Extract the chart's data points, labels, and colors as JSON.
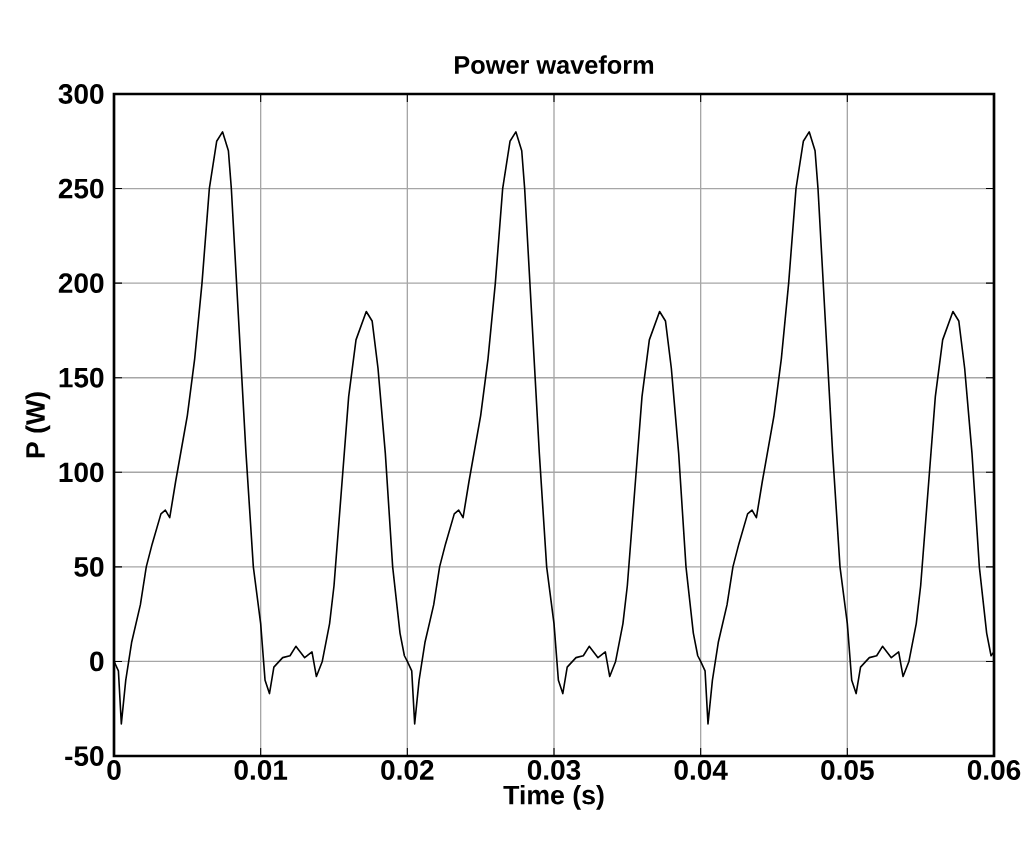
{
  "chart_data": {
    "type": "line",
    "title": "Power waveform",
    "xlabel": "Time (s)",
    "ylabel": "P (W)",
    "x": [
      0,
      0.0003,
      0.0005,
      0.0008,
      0.0012,
      0.0015,
      0.0018,
      0.0022,
      0.0026,
      0.0032,
      0.0035,
      0.0038,
      0.0042,
      0.005,
      0.0055,
      0.006,
      0.0065,
      0.007,
      0.0074,
      0.0078,
      0.008,
      0.0085,
      0.009,
      0.0095,
      0.01,
      0.0103,
      0.0106,
      0.0109,
      0.0115,
      0.012,
      0.0124,
      0.0127,
      0.013,
      0.0135,
      0.0138,
      0.0142,
      0.0147,
      0.015,
      0.0155,
      0.016,
      0.0165,
      0.0172,
      0.0176,
      0.018,
      0.0185,
      0.019,
      0.0195,
      0.0198,
      0.02,
      0.0203,
      0.0205,
      0.0208,
      0.0212,
      0.0215,
      0.0218,
      0.0222,
      0.0226,
      0.0232,
      0.0235,
      0.0238,
      0.0242,
      0.025,
      0.0255,
      0.026,
      0.0265,
      0.027,
      0.0274,
      0.0278,
      0.028,
      0.0285,
      0.029,
      0.0295,
      0.03,
      0.0303,
      0.0306,
      0.0309,
      0.0315,
      0.032,
      0.0324,
      0.0327,
      0.033,
      0.0335,
      0.0338,
      0.0342,
      0.0347,
      0.035,
      0.0355,
      0.036,
      0.0365,
      0.0372,
      0.0376,
      0.038,
      0.0385,
      0.039,
      0.0395,
      0.0398,
      0.04,
      0.0403,
      0.0405,
      0.0408,
      0.0412,
      0.0415,
      0.0418,
      0.0422,
      0.0426,
      0.0432,
      0.0435,
      0.0438,
      0.0442,
      0.045,
      0.0455,
      0.046,
      0.0465,
      0.047,
      0.0474,
      0.0478,
      0.048,
      0.0485,
      0.049,
      0.0495,
      0.05,
      0.0503,
      0.0506,
      0.0509,
      0.0515,
      0.052,
      0.0524,
      0.0527,
      0.053,
      0.0535,
      0.0538,
      0.0542,
      0.0547,
      0.055,
      0.0555,
      0.056,
      0.0565,
      0.0572,
      0.0576,
      0.058,
      0.0585,
      0.059,
      0.0595,
      0.0598,
      0.06
    ],
    "series": [
      {
        "color": "#000000",
        "values": [
          0,
          -5,
          -33,
          -10,
          10,
          20,
          30,
          50,
          62,
          78,
          80,
          76,
          95,
          130,
          160,
          200,
          250,
          275,
          280,
          270,
          250,
          180,
          110,
          50,
          20,
          -10,
          -17,
          -3,
          2,
          3,
          8,
          5,
          2,
          5,
          -8,
          0,
          20,
          40,
          90,
          140,
          170,
          185,
          180,
          155,
          110,
          50,
          15,
          3,
          0,
          -5,
          -33,
          -10,
          10,
          20,
          30,
          50,
          62,
          78,
          80,
          76,
          95,
          130,
          160,
          200,
          250,
          275,
          280,
          270,
          250,
          180,
          110,
          50,
          20,
          -10,
          -17,
          -3,
          2,
          3,
          8,
          5,
          2,
          5,
          -8,
          0,
          20,
          40,
          90,
          140,
          170,
          185,
          180,
          155,
          110,
          50,
          15,
          3,
          0,
          -5,
          -33,
          -10,
          10,
          20,
          30,
          50,
          62,
          78,
          80,
          76,
          95,
          130,
          160,
          200,
          250,
          275,
          280,
          270,
          250,
          180,
          110,
          50,
          20,
          -10,
          -17,
          -3,
          2,
          3,
          8,
          5,
          2,
          5,
          -8,
          0,
          20,
          40,
          90,
          140,
          170,
          185,
          180,
          155,
          110,
          50,
          15,
          3,
          5
        ]
      }
    ],
    "xlim": [
      0,
      0.06
    ],
    "ylim": [
      -50,
      300
    ],
    "xticks": [
      0,
      0.01,
      0.02,
      0.03,
      0.04,
      0.05,
      0.06
    ],
    "yticks": [
      -50,
      0,
      50,
      100,
      150,
      200,
      250,
      300
    ],
    "grid": true,
    "marker": "none",
    "line_style": "solid"
  }
}
